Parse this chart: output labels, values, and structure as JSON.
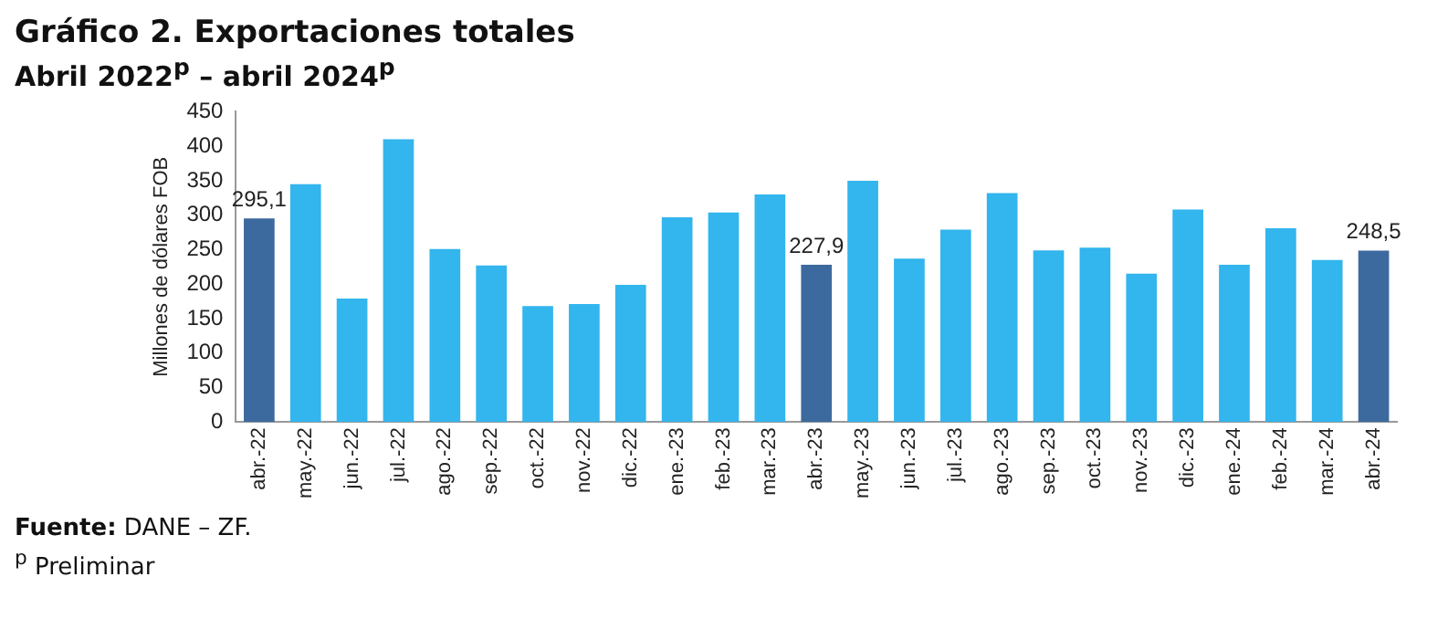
{
  "chart_data": {
    "type": "bar",
    "title": "Gráfico 2. Exportaciones totales",
    "subtitle": "Abril 2022$^{p}$ – abril 2024$^{p}$",
    "ylabel": "Millones de dólares FOB",
    "categories": [
      "abr.-22",
      "may.-22",
      "jun.-22",
      "jul.-22",
      "ago.-22",
      "sep.-22",
      "oct.-22",
      "nov.-22",
      "dic.-22",
      "ene.-23",
      "feb.-23",
      "mar.-23",
      "abr.-23",
      "may.-23",
      "jun.-23",
      "jul.-23",
      "ago.-23",
      "sep.-23",
      "oct.-23",
      "nov.-23",
      "dic.-23",
      "ene.-24",
      "feb.-24",
      "mar.-24",
      "abr.-24"
    ],
    "values": [
      295.1,
      345,
      179,
      410,
      251,
      227,
      168,
      171,
      199,
      297,
      304,
      330,
      227.9,
      350,
      237,
      279,
      332,
      249,
      253,
      215,
      308,
      228,
      281,
      235,
      248.5
    ],
    "colors": [
      "#3d6a9e",
      "#33b5ed",
      "#33b5ed",
      "#33b5ed",
      "#33b5ed",
      "#33b5ed",
      "#33b5ed",
      "#33b5ed",
      "#33b5ed",
      "#33b5ed",
      "#33b5ed",
      "#33b5ed",
      "#3d6a9e",
      "#33b5ed",
      "#33b5ed",
      "#33b5ed",
      "#33b5ed",
      "#33b5ed",
      "#33b5ed",
      "#33b5ed",
      "#33b5ed",
      "#33b5ed",
      "#33b5ed",
      "#33b5ed",
      "#3d6a9e"
    ],
    "value_labels": [
      "295,1",
      null,
      null,
      null,
      null,
      null,
      null,
      null,
      null,
      null,
      null,
      null,
      "227,9",
      null,
      null,
      null,
      null,
      null,
      null,
      null,
      null,
      null,
      null,
      null,
      "248,5"
    ],
    "ylim": [
      0,
      450
    ],
    "yticks": [
      0,
      50,
      100,
      150,
      200,
      250,
      300,
      350,
      400,
      450
    ],
    "grid": false,
    "legend": false,
    "annotations": [
      "Fuente: DANE – ZF.",
      "$^{p}$ Preliminar"
    ]
  }
}
